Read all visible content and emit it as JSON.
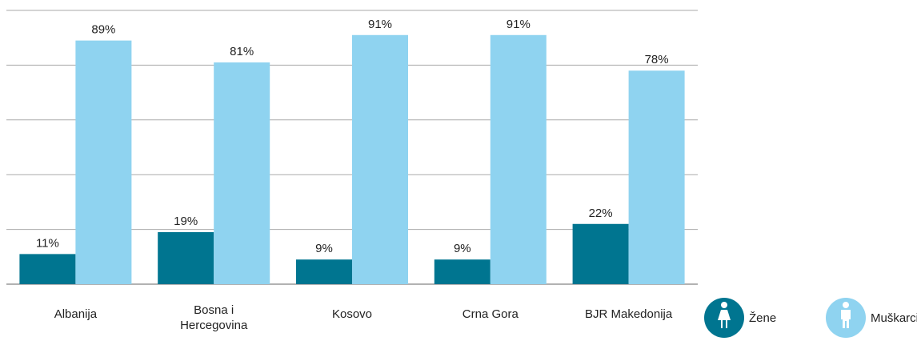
{
  "chart_data": {
    "type": "bar",
    "categories": [
      "Albanija",
      "Bosna i Hercegovina",
      "Kosovo",
      "Crna Gora",
      "BJR Makedonija"
    ],
    "series": [
      {
        "name": "Žene",
        "color": "#007590",
        "values": [
          11,
          19,
          9,
          9,
          22
        ],
        "value_labels": [
          "11%",
          "19%",
          "9%",
          "9%",
          "22%"
        ]
      },
      {
        "name": "Muškarci",
        "color": "#8fd3f0",
        "values": [
          89,
          81,
          91,
          91,
          78
        ],
        "value_labels": [
          "89%",
          "81%",
          "91%",
          "91%",
          "78%"
        ]
      }
    ],
    "ylim": [
      0,
      100
    ],
    "yticks": [
      0,
      20,
      40,
      60,
      80,
      100
    ],
    "grid": true
  }
}
